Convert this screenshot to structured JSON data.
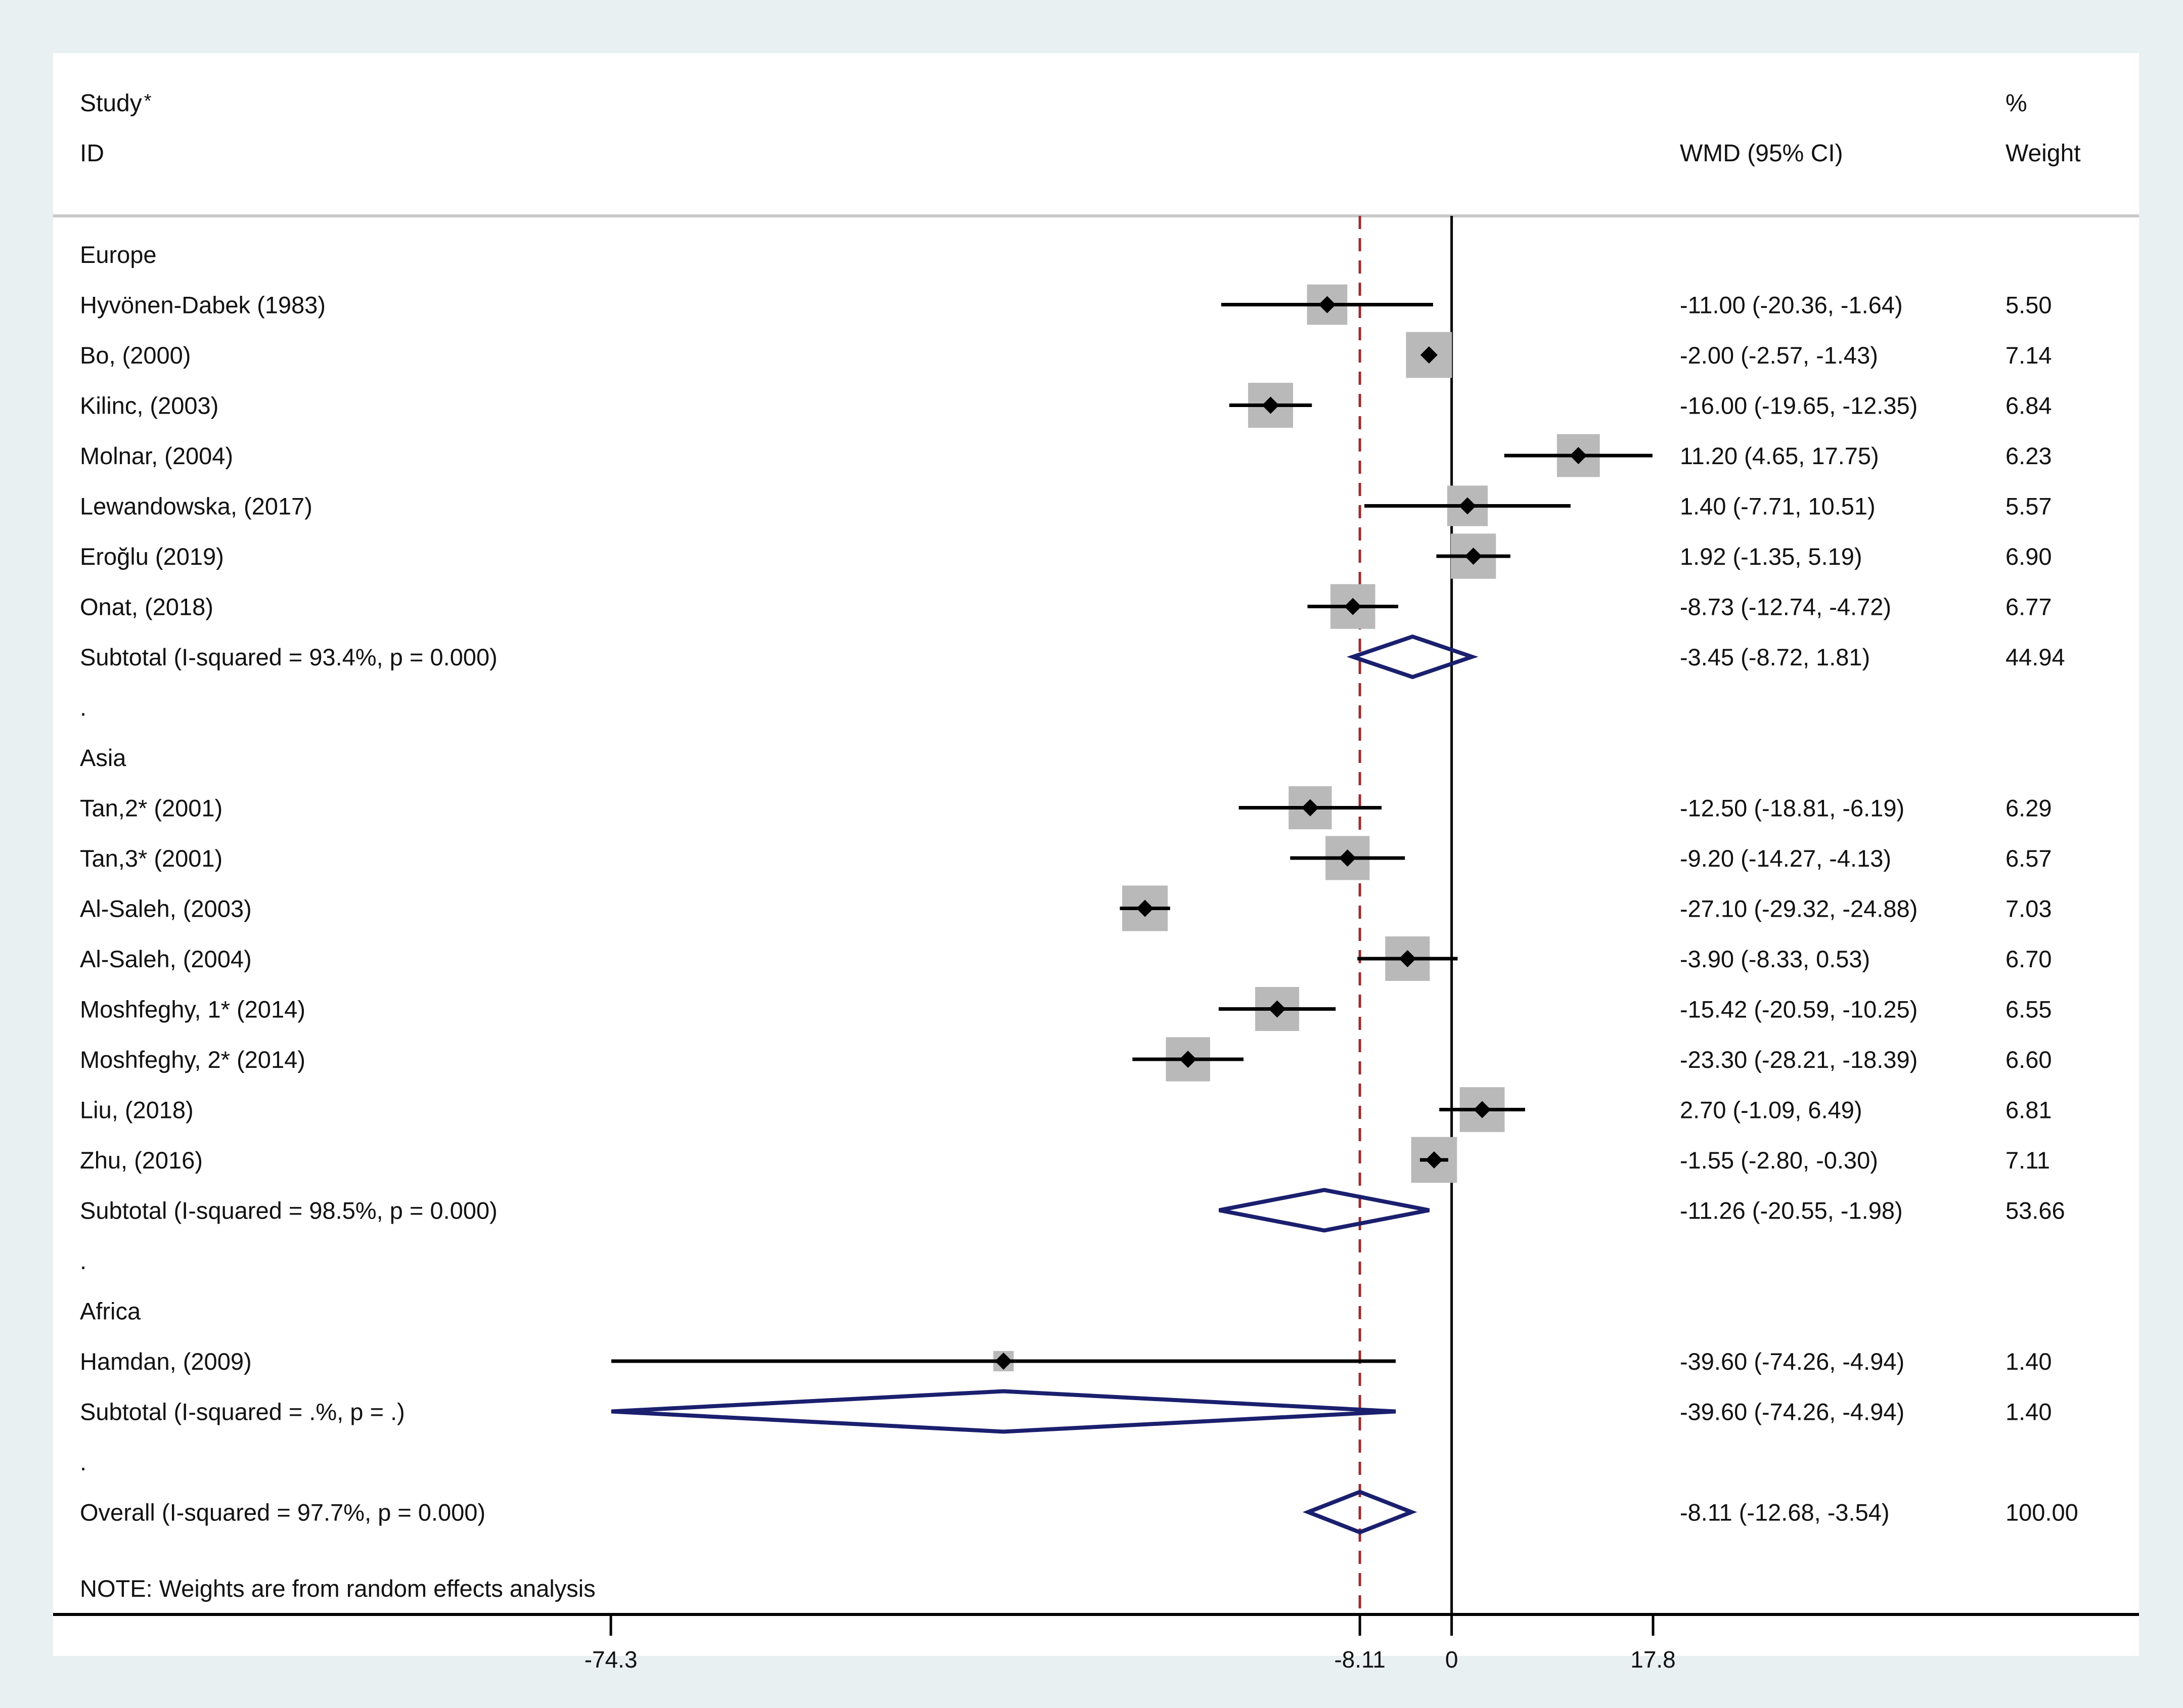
{
  "chart_data": {
    "type": "forest",
    "header": {
      "study_line1": "Study",
      "study_asterisk": "*",
      "study_line2": "ID",
      "effect_col": "WMD (95% CI)",
      "weight_line1": "%",
      "weight_line2": "Weight"
    },
    "axis": {
      "min": -74.3,
      "max": 17.8,
      "ticks": [
        {
          "value": -74.3,
          "label": "-74.3"
        },
        {
          "value": -8.11,
          "label": "-8.11"
        },
        {
          "value": 0,
          "label": "0"
        },
        {
          "value": 17.8,
          "label": "17.8"
        }
      ],
      "null_line": 0,
      "overall_line": -8.11
    },
    "rows": [
      {
        "kind": "group",
        "label": "Europe"
      },
      {
        "kind": "study",
        "label": "Hyvönen-Dabek (1983)",
        "est": -11.0,
        "lo": -20.36,
        "hi": -1.64,
        "ci_text": "-11.00 (-20.36, -1.64)",
        "weight": 5.5,
        "weight_text": "5.50"
      },
      {
        "kind": "study",
        "label": "Bo, (2000)",
        "est": -2.0,
        "lo": -2.57,
        "hi": -1.43,
        "ci_text": "-2.00 (-2.57, -1.43)",
        "weight": 7.14,
        "weight_text": "7.14"
      },
      {
        "kind": "study",
        "label": "Kilinc, (2003)",
        "est": -16.0,
        "lo": -19.65,
        "hi": -12.35,
        "ci_text": "-16.00 (-19.65, -12.35)",
        "weight": 6.84,
        "weight_text": "6.84"
      },
      {
        "kind": "study",
        "label": "Molnar,  (2004)",
        "est": 11.2,
        "lo": 4.65,
        "hi": 17.75,
        "ci_text": "11.20 (4.65, 17.75)",
        "weight": 6.23,
        "weight_text": "6.23"
      },
      {
        "kind": "study",
        "label": "Lewandowska,  (2017)",
        "est": 1.4,
        "lo": -7.71,
        "hi": 10.51,
        "ci_text": "1.40 (-7.71, 10.51)",
        "weight": 5.57,
        "weight_text": "5.57"
      },
      {
        "kind": "study",
        "label": "Eroğlu (2019)",
        "est": 1.92,
        "lo": -1.35,
        "hi": 5.19,
        "ci_text": "1.92 (-1.35, 5.19)",
        "weight": 6.9,
        "weight_text": "6.90"
      },
      {
        "kind": "study",
        "label": "Onat,  (2018)",
        "est": -8.73,
        "lo": -12.74,
        "hi": -4.72,
        "ci_text": "-8.73 (-12.74, -4.72)",
        "weight": 6.77,
        "weight_text": "6.77"
      },
      {
        "kind": "subtotal",
        "label": "Subtotal  (I-squared = 93.4%, p = 0.000)",
        "est": -3.45,
        "lo": -8.72,
        "hi": 1.81,
        "ci_text": "-3.45 (-8.72, 1.81)",
        "weight": 44.94,
        "weight_text": "44.94"
      },
      {
        "kind": "spacer",
        "label": "."
      },
      {
        "kind": "group",
        "label": "Asia"
      },
      {
        "kind": "study",
        "label": "Tan,2* (2001)",
        "est": -12.5,
        "lo": -18.81,
        "hi": -6.19,
        "ci_text": "-12.50 (-18.81, -6.19)",
        "weight": 6.29,
        "weight_text": "6.29"
      },
      {
        "kind": "study",
        "label": "Tan,3* (2001)",
        "est": -9.2,
        "lo": -14.27,
        "hi": -4.13,
        "ci_text": "-9.20 (-14.27, -4.13)",
        "weight": 6.57,
        "weight_text": "6.57"
      },
      {
        "kind": "study",
        "label": "Al-Saleh, (2003)",
        "est": -27.1,
        "lo": -29.32,
        "hi": -24.88,
        "ci_text": "-27.10 (-29.32, -24.88)",
        "weight": 7.03,
        "weight_text": "7.03"
      },
      {
        "kind": "study",
        "label": "Al-Saleh, (2004)",
        "est": -3.9,
        "lo": -8.33,
        "hi": 0.53,
        "ci_text": "-3.90 (-8.33, 0.53)",
        "weight": 6.7,
        "weight_text": "6.70"
      },
      {
        "kind": "study",
        "label": "Moshfeghy, 1* (2014)",
        "est": -15.42,
        "lo": -20.59,
        "hi": -10.25,
        "ci_text": "-15.42 (-20.59, -10.25)",
        "weight": 6.55,
        "weight_text": "6.55"
      },
      {
        "kind": "study",
        "label": "Moshfeghy, 2* (2014)",
        "est": -23.3,
        "lo": -28.21,
        "hi": -18.39,
        "ci_text": "-23.30 (-28.21, -18.39)",
        "weight": 6.6,
        "weight_text": "6.60"
      },
      {
        "kind": "study",
        "label": "Liu, (2018)",
        "est": 2.7,
        "lo": -1.09,
        "hi": 6.49,
        "ci_text": "2.70 (-1.09, 6.49)",
        "weight": 6.81,
        "weight_text": "6.81"
      },
      {
        "kind": "study",
        "label": "Zhu, (2016)",
        "est": -1.55,
        "lo": -2.8,
        "hi": -0.3,
        "ci_text": "-1.55 (-2.80, -0.30)",
        "weight": 7.11,
        "weight_text": "7.11"
      },
      {
        "kind": "subtotal",
        "label": "Subtotal  (I-squared = 98.5%, p = 0.000)",
        "est": -11.26,
        "lo": -20.55,
        "hi": -1.98,
        "ci_text": "-11.26 (-20.55, -1.98)",
        "weight": 53.66,
        "weight_text": "53.66"
      },
      {
        "kind": "spacer",
        "label": "."
      },
      {
        "kind": "group",
        "label": "Africa"
      },
      {
        "kind": "study",
        "label": "Hamdan, (2009)",
        "est": -39.6,
        "lo": -74.26,
        "hi": -4.94,
        "ci_text": "-39.60 (-74.26, -4.94)",
        "weight": 1.4,
        "weight_text": "1.40"
      },
      {
        "kind": "subtotal",
        "label": "Subtotal  (I-squared = .%, p = .)",
        "est": -39.6,
        "lo": -74.26,
        "hi": -4.94,
        "ci_text": "-39.60 (-74.26, -4.94)",
        "weight": 1.4,
        "weight_text": "1.40"
      },
      {
        "kind": "spacer",
        "label": "."
      },
      {
        "kind": "overall",
        "label": "Overall  (I-squared = 97.7%, p = 0.000)",
        "est": -8.11,
        "lo": -12.68,
        "hi": -3.54,
        "ci_text": "-8.11 (-12.68, -3.54)",
        "weight": 100.0,
        "weight_text": "100.00"
      }
    ],
    "note": "NOTE: Weights are from random effects analysis"
  },
  "colors": {
    "background": "#e9f0f2",
    "panel": "#ffffff",
    "ci_line": "#000000",
    "weight_box": "#b9b9b9",
    "diamond": "#1a1f6e",
    "null_line": "#000000",
    "overall_line": "#9b2c2c",
    "separator": "#c8c8c8"
  }
}
